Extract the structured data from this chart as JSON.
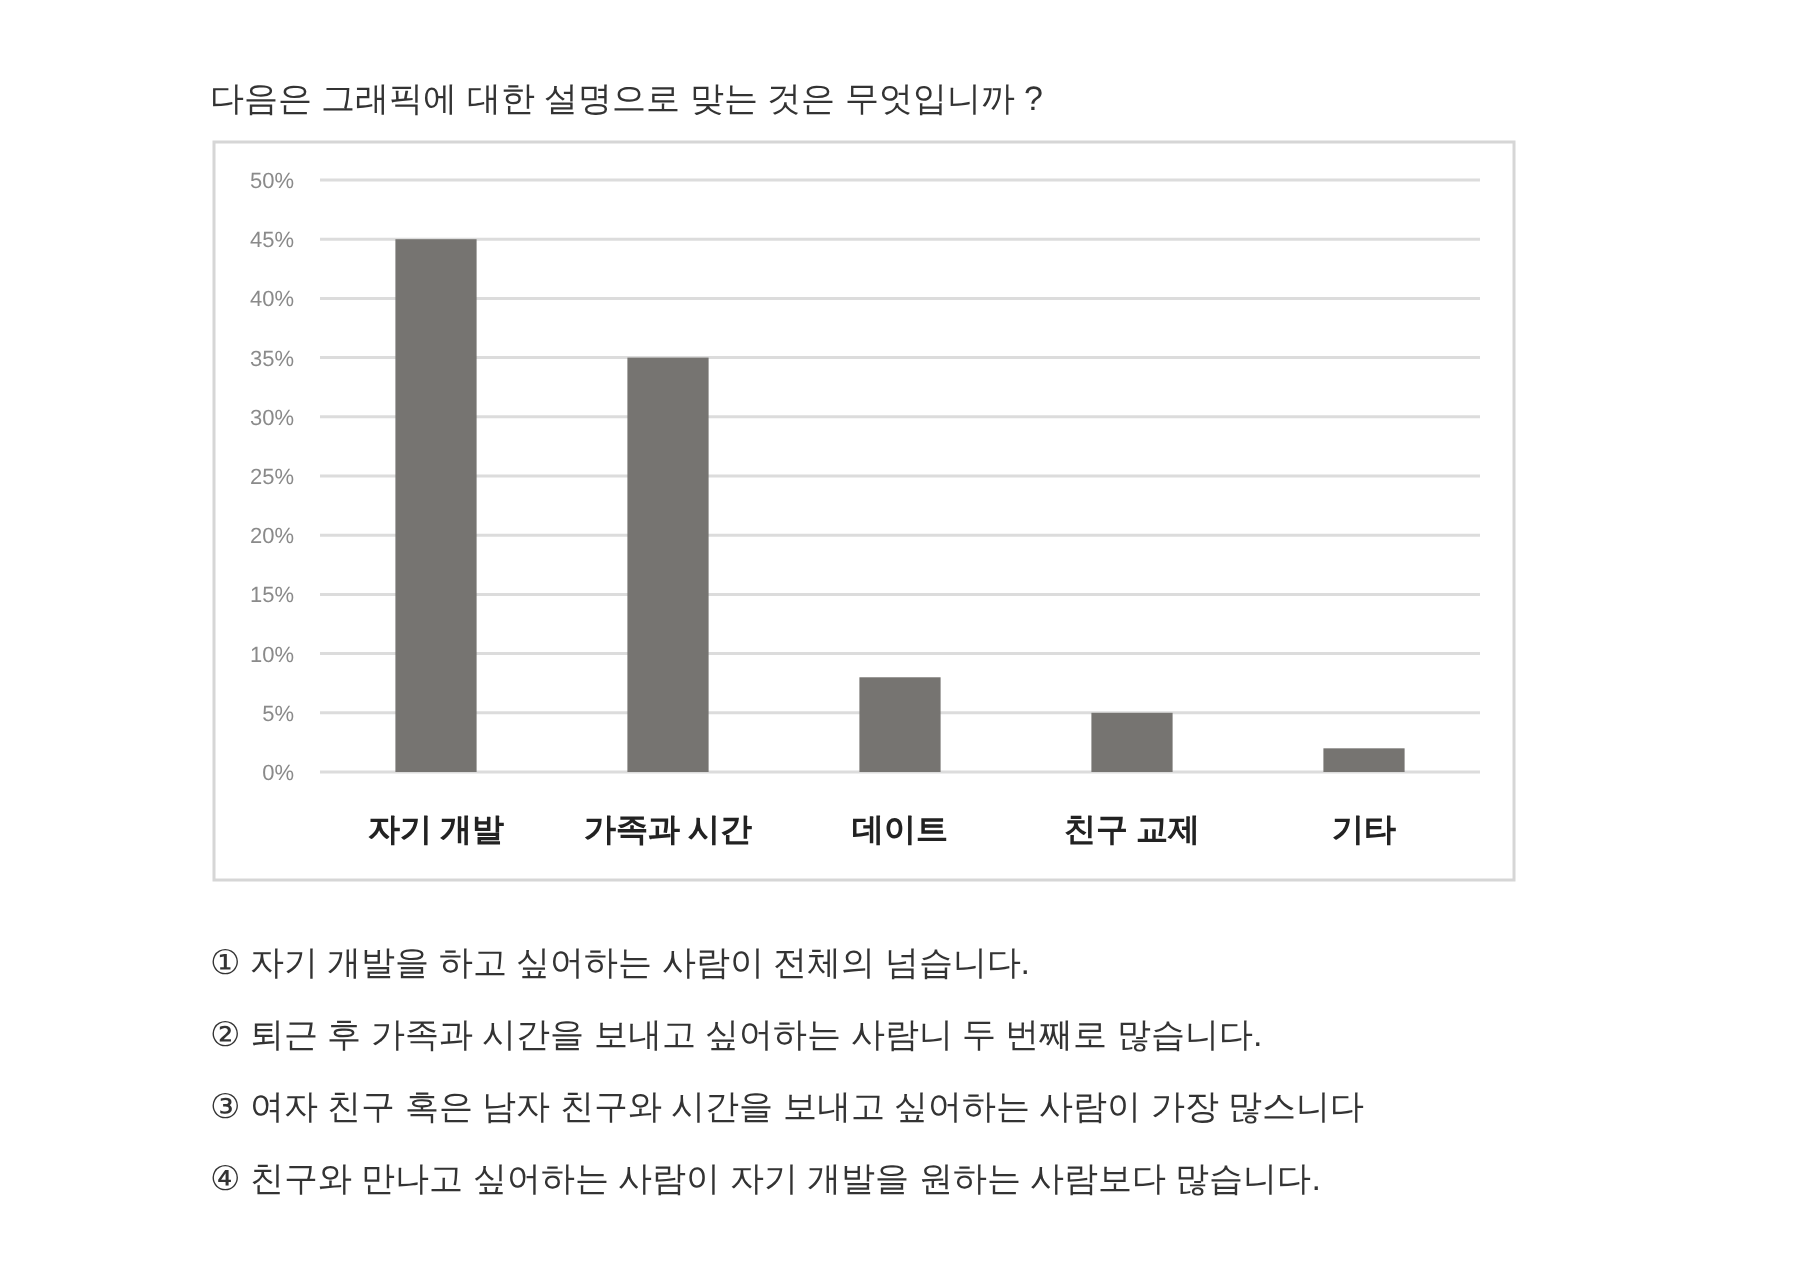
{
  "chart_data": {
    "type": "bar",
    "title": "다음은 그래픽에 대한 설명으로 맞는 것은 무엇입니까 ?",
    "categories": [
      "자기 개발",
      "가족과 시간",
      "데이트",
      "친구 교제",
      "기타"
    ],
    "values": [
      45,
      35,
      8,
      5,
      2
    ],
    "color": "#767471",
    "ylim": [
      0,
      50
    ],
    "yticks": [
      {
        "value": 0,
        "label": "0%"
      },
      {
        "value": 5,
        "label": "5%"
      },
      {
        "value": 10,
        "label": "10%"
      },
      {
        "value": 15,
        "label": "15%"
      },
      {
        "value": 20,
        "label": "20%"
      },
      {
        "value": 25,
        "label": "25%"
      },
      {
        "value": 30,
        "label": "30%"
      },
      {
        "value": 35,
        "label": "35%"
      },
      {
        "value": 40,
        "label": "40%"
      },
      {
        "value": 45,
        "label": "45%"
      },
      {
        "value": 50,
        "label": "50%"
      }
    ],
    "grid": "y",
    "annotations": [
      "① 자기 개발을 하고 싶어하는 사람이 전체의 넘습니다.",
      "② 퇴근 후 가족과 시간을 보내고 싶어하는 사람니 두 번째로 많습니다.",
      "③ 여자 친구 혹은 남자 친구와 시간을 보내고 싶어하는 사람이 가장 많스니다",
      "④ 친구와 만나고 싶어하는 사람이 자기 개발을 원하는 사람보다 많습니다."
    ]
  }
}
